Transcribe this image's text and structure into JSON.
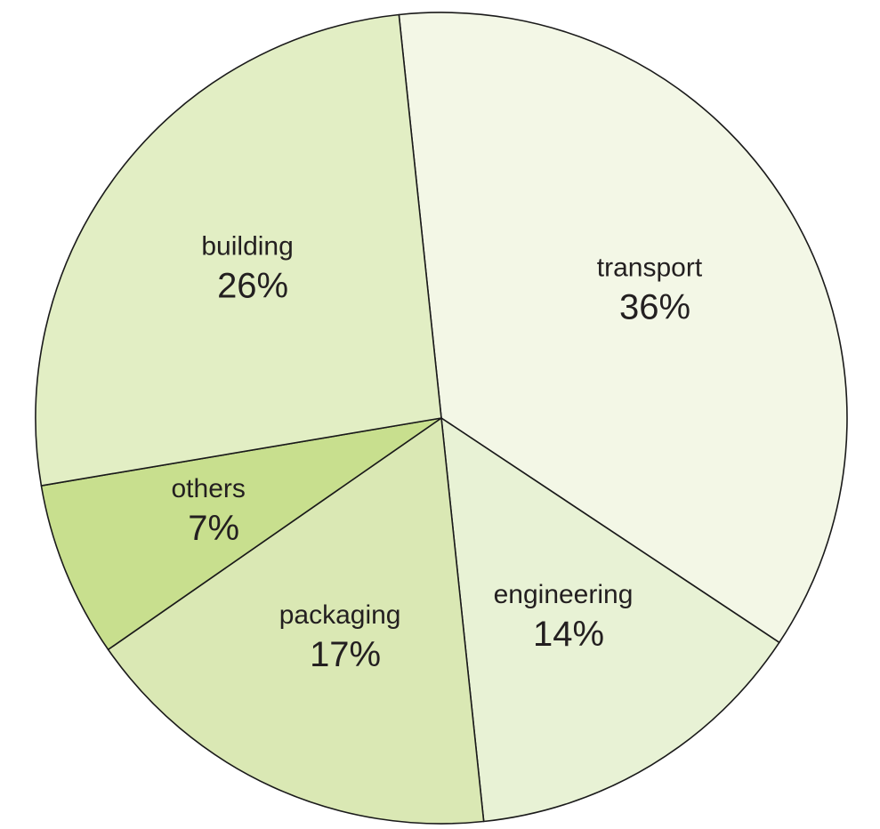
{
  "chart_data": {
    "type": "pie",
    "title": "",
    "start_angle_deg": -6,
    "direction": "clockwise",
    "slices": [
      {
        "label": "transport",
        "value": 36,
        "value_label": "36%",
        "color": "#f3f7e6"
      },
      {
        "label": "engineering",
        "value": 14,
        "value_label": "14%",
        "color": "#e8f2d5"
      },
      {
        "label": "packaging",
        "value": 17,
        "value_label": "17%",
        "color": "#dae8b4"
      },
      {
        "label": "others",
        "value": 7,
        "value_label": "7%",
        "color": "#c8df8e"
      },
      {
        "label": "building",
        "value": 26,
        "value_label": "26%",
        "color": "#e2eec4"
      }
    ],
    "legend": "none",
    "data_labels": "inside"
  }
}
